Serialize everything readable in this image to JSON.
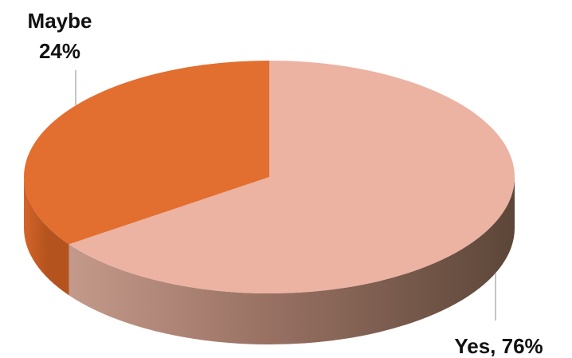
{
  "chart_data": {
    "type": "pie",
    "style": "3d",
    "title": "",
    "categories": [
      "Yes",
      "Maybe"
    ],
    "values": [
      76,
      24
    ],
    "unit": "%",
    "colors": {
      "Yes": {
        "top": "#ecb2a2",
        "side_dark": "#5f4a40",
        "side_light": "#c79a8a"
      },
      "Maybe": {
        "top": "#e26e2f",
        "side": "#b5541f"
      }
    },
    "legend": "none",
    "data_labels": [
      {
        "category": "Yes",
        "line1": "Yes, 76%",
        "line2": "",
        "placement": "bottom-right"
      },
      {
        "category": "Maybe",
        "line1": "Maybe",
        "line2": "24%",
        "placement": "top-left"
      }
    ]
  }
}
